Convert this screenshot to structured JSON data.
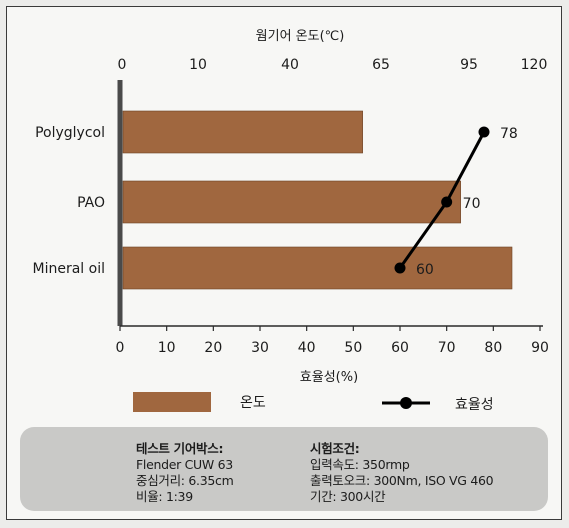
{
  "chart_data": {
    "type": "bar",
    "orientation": "horizontal",
    "categories": [
      "Polyglycol",
      "PAO",
      "Mineral oil"
    ],
    "series": [
      {
        "name": "온도",
        "axis": "top",
        "values": [
          52,
          73,
          84
        ],
        "color": "#a0673f"
      },
      {
        "name": "효율성",
        "axis": "bottom",
        "type": "line",
        "values": [
          78,
          70,
          60
        ],
        "data_labels": [
          "78",
          "70",
          "60"
        ],
        "color": "#000000"
      }
    ],
    "top_axis": {
      "label": "웜기어 온도(℃)",
      "ticks": [
        "0",
        "10",
        "40",
        "65",
        "95",
        "120"
      ]
    },
    "bottom_axis": {
      "label": "효율성(%)",
      "ticks": [
        0,
        10,
        20,
        30,
        40,
        50,
        60,
        70,
        80,
        90
      ],
      "range": [
        0,
        90
      ]
    },
    "legend": [
      {
        "label": "온도",
        "kind": "bar",
        "color": "#a0673f"
      },
      {
        "label": "효율성",
        "kind": "line",
        "color": "#000000"
      }
    ]
  },
  "info": {
    "left": {
      "heading": "테스트 기어박스:",
      "lines": [
        "Flender CUW 63",
        "중심거리: 6.35cm",
        "비율: 1:39"
      ]
    },
    "right": {
      "heading": "시험조건:",
      "lines": [
        "입력속도: 350rmp",
        "출력토오크: 300Nm, ISO VG 460",
        "기간: 300시간"
      ]
    }
  }
}
